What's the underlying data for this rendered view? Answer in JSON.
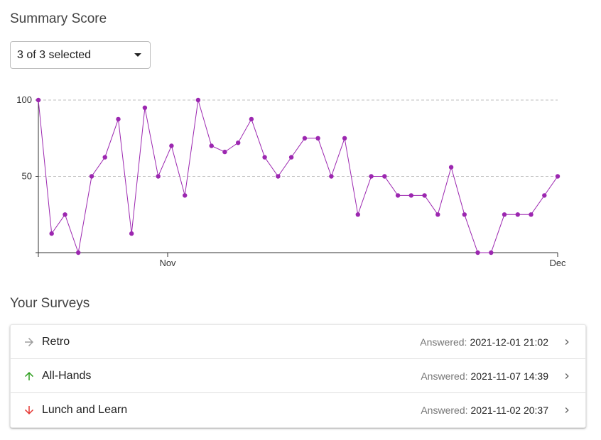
{
  "summary": {
    "title": "Summary Score",
    "select": {
      "value": "3 of 3 selected"
    }
  },
  "chart_data": {
    "type": "line",
    "y_ticks": [
      100,
      50
    ],
    "ylim": [
      0,
      100
    ],
    "x_ticks": [
      "Nov",
      "Dec"
    ],
    "grid": "horizontal dashed at 50 and 100",
    "color": "#9c27b0",
    "values": [
      100,
      12.5,
      25,
      0,
      50,
      62.5,
      87.5,
      12.5,
      95,
      50,
      70,
      37.5,
      100,
      70,
      66,
      72,
      87.5,
      62.5,
      50,
      62.5,
      75,
      75,
      50,
      75,
      25,
      50,
      50,
      37.5,
      37.5,
      37.5,
      25,
      56,
      25,
      0,
      0,
      25,
      25,
      25,
      37.5,
      50
    ]
  },
  "surveys": {
    "title": "Your Surveys",
    "answered_label": "Answered:",
    "rows": [
      {
        "name": "Retro",
        "trend": "flat",
        "icon": "arrow-right-icon",
        "icon_color": "#9e9e9e",
        "answered": "2021-12-01 21:02"
      },
      {
        "name": "All-Hands",
        "trend": "up",
        "icon": "arrow-up-icon",
        "icon_color": "#2e9e1f",
        "answered": "2021-11-07 14:39"
      },
      {
        "name": "Lunch and Learn",
        "trend": "down",
        "icon": "arrow-down-icon",
        "icon_color": "#e53935",
        "answered": "2021-11-02 20:37"
      }
    ]
  }
}
